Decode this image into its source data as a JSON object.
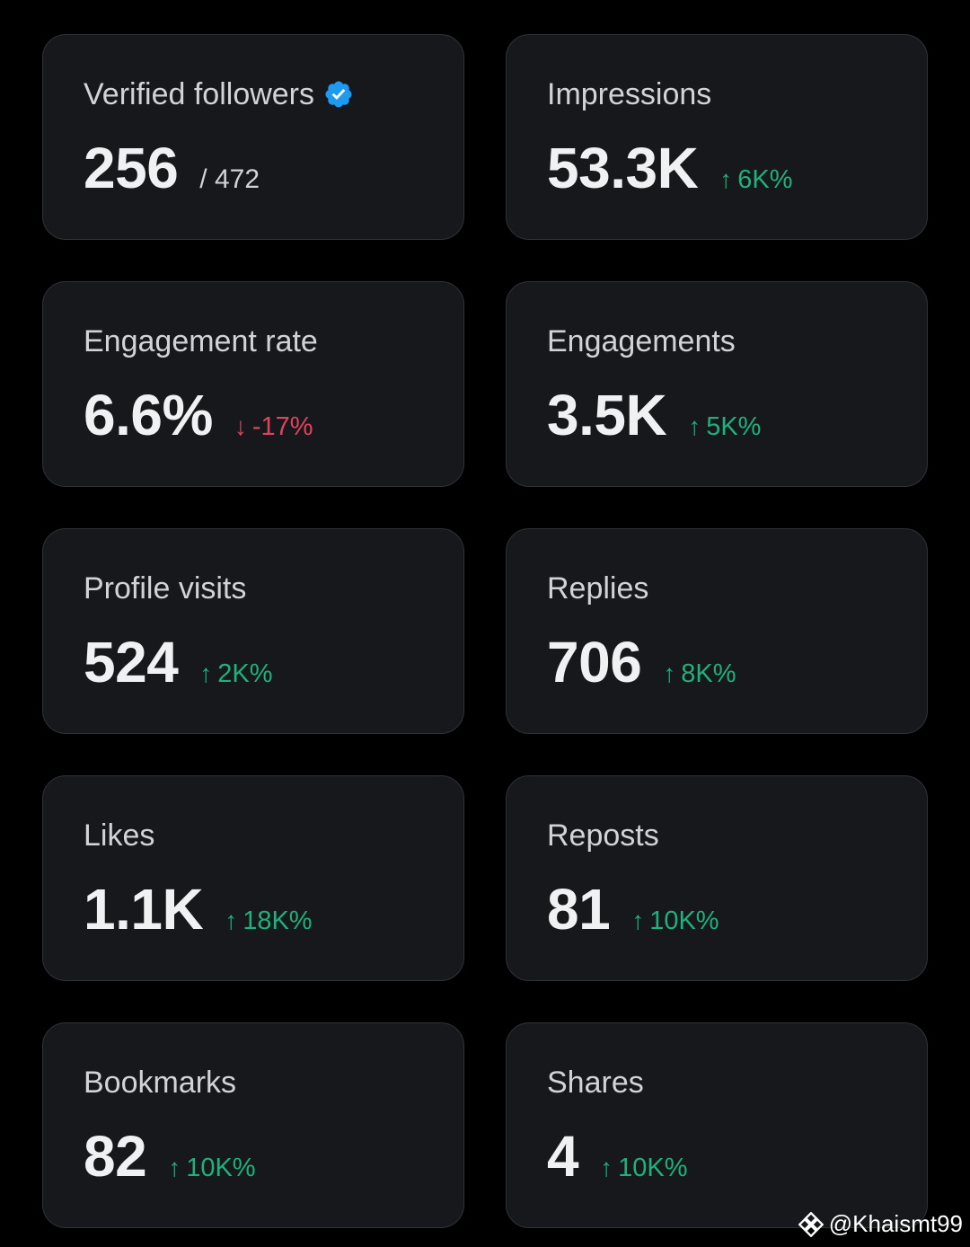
{
  "colors": {
    "background": "#000000",
    "card": "#17181c",
    "card_border": "#2f3336",
    "up": "#20b07a",
    "down": "#e0445a",
    "verified": "#1d9bf0"
  },
  "cards": [
    {
      "label": "Verified followers",
      "value": "256",
      "sub": "/ 472",
      "icon": "verified-badge-icon"
    },
    {
      "label": "Impressions",
      "value": "53.3K",
      "trend": {
        "dir": "up",
        "arrow": "↑",
        "text": "6K%"
      }
    },
    {
      "label": "Engagement rate",
      "value": "6.6%",
      "trend": {
        "dir": "down",
        "arrow": "↓",
        "text": "-17%"
      }
    },
    {
      "label": "Engagements",
      "value": "3.5K",
      "trend": {
        "dir": "up",
        "arrow": "↑",
        "text": "5K%"
      }
    },
    {
      "label": "Profile visits",
      "value": "524",
      "trend": {
        "dir": "up",
        "arrow": "↑",
        "text": "2K%"
      }
    },
    {
      "label": "Replies",
      "value": "706",
      "trend": {
        "dir": "up",
        "arrow": "↑",
        "text": "8K%"
      }
    },
    {
      "label": "Likes",
      "value": "1.1K",
      "trend": {
        "dir": "up",
        "arrow": "↑",
        "text": "18K%"
      }
    },
    {
      "label": "Reposts",
      "value": "81",
      "trend": {
        "dir": "up",
        "arrow": "↑",
        "text": "10K%"
      }
    },
    {
      "label": "Bookmarks",
      "value": "82",
      "trend": {
        "dir": "up",
        "arrow": "↑",
        "text": "10K%"
      }
    },
    {
      "label": "Shares",
      "value": "4",
      "trend": {
        "dir": "up",
        "arrow": "↑",
        "text": "10K%"
      }
    }
  ],
  "watermark": {
    "text": "@Khaismt99",
    "icon": "binance-logo-icon"
  }
}
